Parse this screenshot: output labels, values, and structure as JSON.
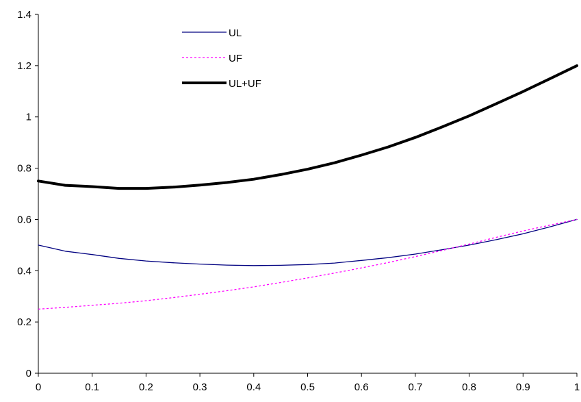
{
  "chart_data": {
    "type": "line",
    "title": "",
    "xlabel": "",
    "ylabel": "",
    "xlim": [
      0,
      1
    ],
    "ylim": [
      0,
      1.4
    ],
    "xticks": [
      "0",
      "0.1",
      "0.2",
      "0.3",
      "0.4",
      "0.5",
      "0.6",
      "0.7",
      "0.8",
      "0.9",
      "1"
    ],
    "yticks": [
      "0",
      "0.2",
      "0.4",
      "0.6",
      "0.8",
      "1",
      "1.2",
      "1.4"
    ],
    "grid": false,
    "legend_position": "top-left",
    "x": [
      0,
      0.05,
      0.1,
      0.15,
      0.2,
      0.25,
      0.3,
      0.35,
      0.4,
      0.45,
      0.5,
      0.55,
      0.6,
      0.65,
      0.7,
      0.75,
      0.8,
      0.85,
      0.9,
      0.95,
      1
    ],
    "series": [
      {
        "name": "UL",
        "color": "#000080",
        "style": "solid",
        "width": 1.3,
        "values": [
          0.5,
          0.476,
          0.463,
          0.448,
          0.438,
          0.431,
          0.426,
          0.422,
          0.42,
          0.421,
          0.424,
          0.43,
          0.44,
          0.451,
          0.465,
          0.482,
          0.5,
          0.521,
          0.544,
          0.571,
          0.6
        ]
      },
      {
        "name": "UF",
        "color": "#ff00ff",
        "style": "dashed",
        "width": 1.3,
        "values": [
          0.25,
          0.257,
          0.265,
          0.273,
          0.283,
          0.295,
          0.308,
          0.322,
          0.337,
          0.354,
          0.372,
          0.391,
          0.411,
          0.432,
          0.455,
          0.479,
          0.504,
          0.53,
          0.555,
          0.578,
          0.6
        ]
      },
      {
        "name": "UL+UF",
        "color": "#000000",
        "style": "solid",
        "width": 4,
        "values": [
          0.75,
          0.733,
          0.728,
          0.721,
          0.721,
          0.726,
          0.734,
          0.744,
          0.757,
          0.775,
          0.796,
          0.821,
          0.851,
          0.883,
          0.92,
          0.961,
          1.004,
          1.051,
          1.099,
          1.149,
          1.2
        ]
      }
    ]
  }
}
